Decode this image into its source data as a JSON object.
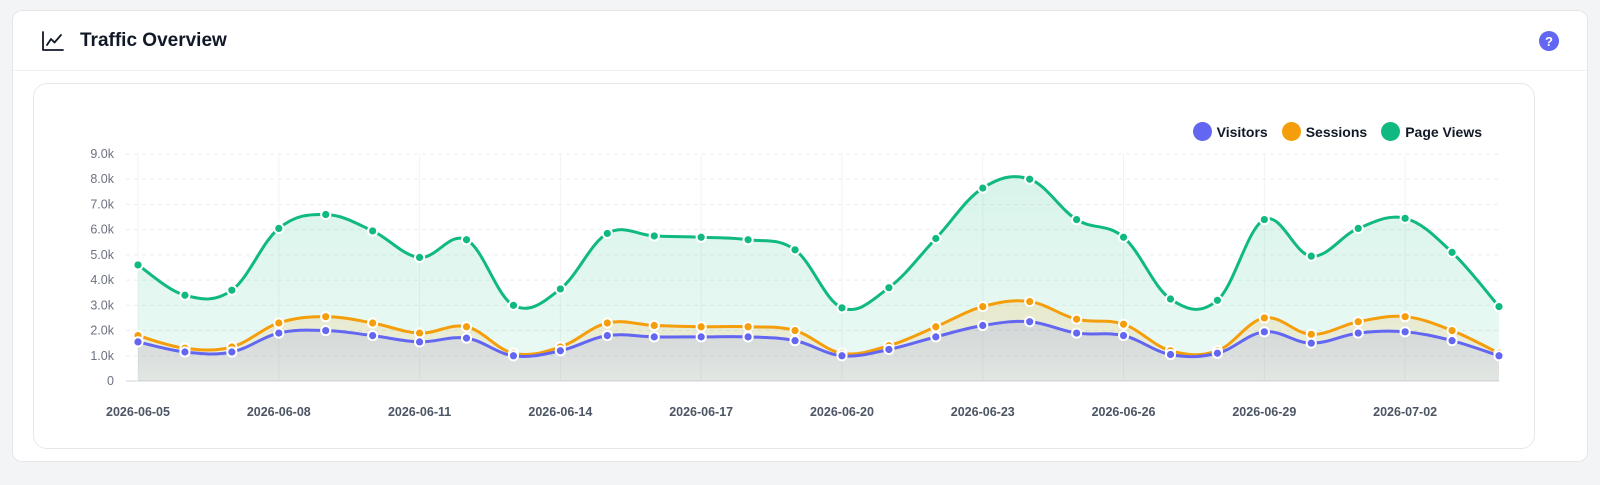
{
  "header": {
    "title": "Traffic Overview",
    "icon": "line-chart-icon",
    "help_label": "?"
  },
  "colors": {
    "visitors": "#6366f1",
    "sessions": "#f59e0b",
    "page_views": "#10b981"
  },
  "chart_data": {
    "type": "area",
    "title": "",
    "xlabel": "",
    "ylabel": "",
    "ylim": [
      0,
      9000
    ],
    "y_ticks": [
      0,
      1000,
      2000,
      3000,
      4000,
      5000,
      6000,
      7000,
      8000,
      9000
    ],
    "y_tick_labels": [
      "0",
      "1.0k",
      "2.0k",
      "3.0k",
      "4.0k",
      "5.0k",
      "6.0k",
      "7.0k",
      "8.0k",
      "9.0k"
    ],
    "x": [
      "2026-06-05",
      "2026-06-06",
      "2026-06-07",
      "2026-06-08",
      "2026-06-09",
      "2026-06-10",
      "2026-06-11",
      "2026-06-12",
      "2026-06-13",
      "2026-06-14",
      "2026-06-15",
      "2026-06-16",
      "2026-06-17",
      "2026-06-18",
      "2026-06-19",
      "2026-06-20",
      "2026-06-21",
      "2026-06-22",
      "2026-06-23",
      "2026-06-24",
      "2026-06-25",
      "2026-06-26",
      "2026-06-27",
      "2026-06-28",
      "2026-06-29",
      "2026-06-30",
      "2026-07-01",
      "2026-07-02",
      "2026-07-03",
      "2026-07-04"
    ],
    "x_tick_labels": [
      "2026-06-05",
      "2026-06-08",
      "2026-06-11",
      "2026-06-14",
      "2026-06-17",
      "2026-06-20",
      "2026-06-23",
      "2026-06-26",
      "2026-06-29",
      "2026-07-02"
    ],
    "grid": true,
    "legend": "top-right",
    "series": [
      {
        "name": "Visitors",
        "key": "visitors",
        "values": [
          1550,
          1150,
          1150,
          1900,
          2000,
          1800,
          1550,
          1700,
          1000,
          1200,
          1800,
          1750,
          1750,
          1750,
          1600,
          1000,
          1250,
          1750,
          2200,
          2350,
          1900,
          1800,
          1050,
          1100,
          1950,
          1500,
          1900,
          1950,
          1600,
          1000
        ]
      },
      {
        "name": "Sessions",
        "key": "sessions",
        "values": [
          1800,
          1300,
          1350,
          2300,
          2550,
          2300,
          1900,
          2150,
          1100,
          1350,
          2300,
          2200,
          2150,
          2150,
          2000,
          1100,
          1400,
          2150,
          2950,
          3150,
          2450,
          2250,
          1200,
          1200,
          2500,
          1850,
          2350,
          2550,
          2000,
          1100
        ]
      },
      {
        "name": "Page Views",
        "key": "page_views",
        "values": [
          4600,
          3400,
          3600,
          6050,
          6600,
          5950,
          4900,
          5600,
          3000,
          3650,
          5850,
          5750,
          5700,
          5600,
          5200,
          2900,
          3700,
          5650,
          7650,
          8000,
          6400,
          5700,
          3250,
          3200,
          6400,
          4950,
          6050,
          6450,
          5100,
          2950
        ]
      }
    ]
  }
}
